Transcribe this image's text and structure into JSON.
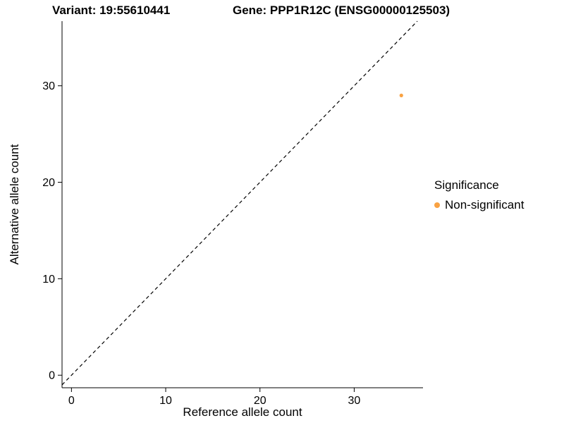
{
  "chart_data": {
    "type": "scatter",
    "title_left": "Variant: 19:55610441",
    "title_right": "Gene: PPP1R12C (ENSG00000125503)",
    "xlabel": "Reference allele count",
    "ylabel": "Alternative allele count",
    "xlim": [
      -1.0,
      37.3
    ],
    "ylim": [
      -1.3,
      36.7
    ],
    "xticks": [
      0,
      10,
      20,
      30
    ],
    "yticks": [
      0,
      10,
      20,
      30
    ],
    "grid": false,
    "identity_line": {
      "style": "dashed",
      "color": "#000000"
    },
    "points": [
      {
        "x": 35,
        "y": 29,
        "series": "Non-significant"
      }
    ],
    "point_color": "#F9A242",
    "legend": {
      "title": "Significance",
      "position": "right",
      "entries": [
        {
          "label": "Non-significant",
          "color": "#F9A242"
        }
      ]
    }
  }
}
